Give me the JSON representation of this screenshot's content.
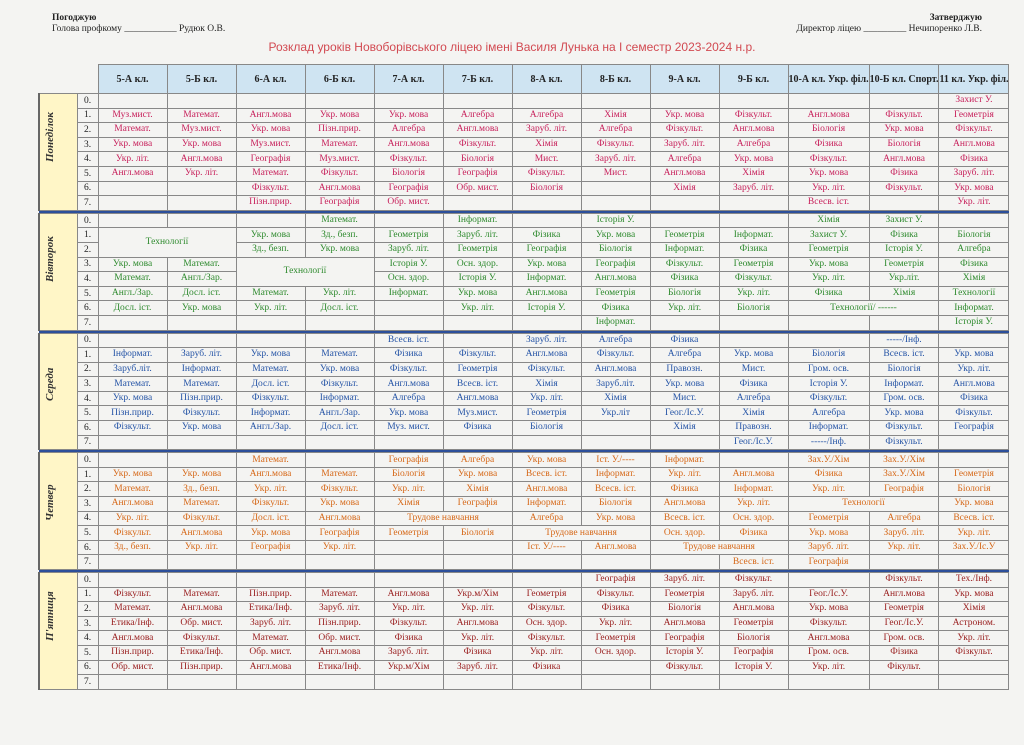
{
  "header": {
    "left_title": "Погоджую",
    "left_role": "Голова профкому",
    "left_line": "___________",
    "left_name": "Рудюк О.В.",
    "right_title": "Затверджую",
    "right_role": "Директор ліцею",
    "right_line": "_________",
    "right_name": "Нечипоренко Л.В."
  },
  "title": "Розклад уроків Новоборівського ліцею імені Василя Лунька на І семестр 2023-2024 н.р.",
  "classes": [
    "5-А кл.",
    "5-Б кл.",
    "6-А кл.",
    "6-Б кл.",
    "7-А кл.",
    "7-Б кл.",
    "8-А кл.",
    "8-Б кл.",
    "9-А кл.",
    "9-Б кл.",
    "10-А кл. Укр. філ.",
    "10-Б кл. Спорт.",
    "11 кл. Укр. філ."
  ],
  "periods": [
    "0.",
    "1.",
    "2.",
    "3.",
    "4.",
    "5.",
    "6.",
    "7."
  ],
  "colors": {
    "monday": "#c71f5a",
    "tuesday": "#2e8a2e",
    "wednesday": "#2554a6",
    "thursday": "#d66818",
    "friday": "#9a2020"
  },
  "days": [
    {
      "name": "Понеділок",
      "rows": [
        [
          "",
          "",
          "",
          "",
          "",
          "",
          "",
          "",
          "",
          "",
          "",
          "",
          "Захист У."
        ],
        [
          "Муз.мист.",
          "Математ.",
          "Англ.мова",
          "Укр. мова",
          "Укр. мова",
          "Алгебра",
          "Алгебра",
          "Хімія",
          "Укр. мова",
          "Фізкульт.",
          "Англ.мова",
          "Фізкульт.",
          "Геометрія"
        ],
        [
          "Математ.",
          "Муз.мист.",
          "Укр. мова",
          "Пізн.прир.",
          "Алгебра",
          "Англ.мова",
          "Заруб. літ.",
          "Алгебра",
          "Фізкульт.",
          "Англ.мова",
          "Біологія",
          "Укр. мова",
          "Фізкульт."
        ],
        [
          "Укр. мова",
          "Укр. мова",
          "Муз.мист.",
          "Математ.",
          "Англ.мова",
          "Фізкульт.",
          "Хімія",
          "Фізкульт.",
          "Заруб. літ.",
          "Алгебра",
          "Фізика",
          "Біологія",
          "Англ.мова"
        ],
        [
          "Укр. літ.",
          "Англ.мова",
          "Географія",
          "Муз.мист.",
          "Фізкульт.",
          "Біологія",
          "Мист.",
          "Заруб. літ.",
          "Алгебра",
          "Укр. мова",
          "Фізкульт.",
          "Англ.мова",
          "Фізика"
        ],
        [
          "Англ.мова",
          "Укр. літ.",
          "Математ.",
          "Фізкульт.",
          "Біологія",
          "Географія",
          "Фізкульт.",
          "Мист.",
          "Англ.мова",
          "Хімія",
          "Укр. мова",
          "Фізика",
          "Заруб. літ."
        ],
        [
          "",
          "",
          "Фізкульт.",
          "Англ.мова",
          "Географія",
          "Обр. мист.",
          "Біологія",
          "",
          "Хімія",
          "Заруб. літ.",
          "Укр. літ.",
          "Фізкульт.",
          "Укр. мова"
        ],
        [
          "",
          "",
          "Пізн.прир.",
          "Географія",
          "Обр. мист.",
          "",
          "",
          "",
          "",
          "",
          "Всесв. іст.",
          "",
          "Укр. літ."
        ]
      ]
    },
    {
      "name": "Вівторок",
      "rows": [
        [
          "",
          "",
          "",
          "Математ.",
          "",
          "Інформат.",
          "",
          "Історія У.",
          "",
          "",
          "Хімія",
          "Захист У.",
          ""
        ],
        [
          "Технології",
          "Технології",
          "Укр. мова",
          "Зд., безп.",
          "Геометрія",
          "Заруб. літ.",
          "Фізика",
          "Укр. мова",
          "Геометрія",
          "Інформат.",
          "Захист У.",
          "Фізика",
          "Біологія"
        ],
        [
          "",
          "",
          "Зд., безп.",
          "Укр. мова",
          "Заруб. літ.",
          "Геометрія",
          "Географія",
          "Біологія",
          "Інформат.",
          "Фізика",
          "Геометрія",
          "Історія У.",
          "Алгебра"
        ],
        [
          "Укр. мова",
          "Математ.",
          "Технології",
          "Технології",
          "Історія У.",
          "Осн. здор.",
          "Укр. мова",
          "Географія",
          "Фізкульт.",
          "Геометрія",
          "Укр. мова",
          "Геометрія",
          "Фізика"
        ],
        [
          "Математ.",
          "Англ./Зар.",
          "",
          "",
          "Осн. здор.",
          "Історія У.",
          "Інформат.",
          "Англ.мова",
          "Фізика",
          "Фізкульт.",
          "Укр. літ.",
          "Укр.літ.",
          "Хімія"
        ],
        [
          "Англ./Зар.",
          "Досл. іст.",
          "Математ.",
          "Укр. літ.",
          "Інформат.",
          "Укр. мова",
          "Англ.мова",
          "Геометрія",
          "Біологія",
          "Укр. літ.",
          "Фізика",
          "Хімія",
          "Технології"
        ],
        [
          "Досл. іст.",
          "Укр. мова",
          "Укр. літ.",
          "Досл. іст.",
          "",
          "Укр. літ.",
          "Історія У.",
          "Фізика",
          "Укр. літ.",
          "Біологія",
          "Технології/ ------",
          "Технології/ ------",
          "Інформат."
        ],
        [
          "",
          "",
          "",
          "",
          "",
          "",
          "",
          "Інформат.",
          "",
          "",
          "",
          "",
          "Історія У."
        ]
      ]
    },
    {
      "name": "Середа",
      "rows": [
        [
          "",
          "",
          "",
          "",
          "Всесв. іст.",
          "",
          "Заруб. літ.",
          "Алгебра",
          "Фізика",
          "",
          "",
          "-----/Інф.",
          ""
        ],
        [
          "Інформат.",
          "Заруб. літ.",
          "Укр. мова",
          "Математ.",
          "Фізика",
          "Фізкульт.",
          "Англ.мова",
          "Фізкульт.",
          "Алгебра",
          "Укр. мова",
          "Біологія",
          "Всесв. іст.",
          "Укр. мова"
        ],
        [
          "Заруб.літ.",
          "Інформат.",
          "Математ.",
          "Укр. мова",
          "Фізкульт.",
          "Геометрія",
          "Фізкульт.",
          "Англ.мова",
          "Правозн.",
          "Мист.",
          "Гром. осв.",
          "Біологія",
          "Укр. літ."
        ],
        [
          "Математ.",
          "Математ.",
          "Досл. іст.",
          "Фізкульт.",
          "Англ.мова",
          "Всесв. іст.",
          "Хімія",
          "Заруб.літ.",
          "Укр. мова",
          "Фізика",
          "Історія У.",
          "Інформат.",
          "Англ.мова"
        ],
        [
          "Укр. мова",
          "Пізн.прир.",
          "Фізкульт.",
          "Інформат.",
          "Алгебра",
          "Англ.мова",
          "Укр. літ.",
          "Хімія",
          "Мист.",
          "Алгебра",
          "Фізкульт.",
          "Гром. осв.",
          "Фізика"
        ],
        [
          "Пізн.прир.",
          "Фізкульт.",
          "Інформат.",
          "Англ./Зар.",
          "Укр. мова",
          "Муз.мист.",
          "Геометрія",
          "Укр.літ",
          "Геог./Іс.У.",
          "Хімія",
          "Алгебра",
          "Укр. мова",
          "Фізкульт."
        ],
        [
          "Фізкульт.",
          "Укр. мова",
          "Англ./Зар.",
          "Досл. іст.",
          "Муз. мист.",
          "Фізика",
          "Біологія",
          "",
          "Хімія",
          "Правозн.",
          "Інформат.",
          "Фізкульт.",
          "Географія"
        ],
        [
          "",
          "",
          "",
          "",
          "",
          "",
          "",
          "",
          "",
          "Геог./Іс.У.",
          "-----/Інф.",
          "Фізкульт.",
          ""
        ]
      ]
    },
    {
      "name": "Четвер",
      "rows": [
        [
          "",
          "",
          "Математ.",
          "",
          "Географія",
          "Алгебра",
          "Укр. мова",
          "Іст. У./----",
          "Інформат.",
          "",
          "Зах.У./Хім",
          "Зах.У./Хім",
          ""
        ],
        [
          "Укр. мова",
          "Укр. мова",
          "Англ.мова",
          "Математ.",
          "Біологія",
          "Укр. мова",
          "Всесв. іст.",
          "Інформат.",
          "Укр. літ.",
          "Англ.мова",
          "Фізика",
          "Зах.У./Хім",
          "Геометрія"
        ],
        [
          "Математ.",
          "Зд., безп.",
          "Укр. літ.",
          "Фізкульт.",
          "Укр. літ.",
          "Хімія",
          "Англ.мова",
          "Всесв. іст.",
          "Фізика",
          "Інформат.",
          "Укр. літ.",
          "Географія",
          "Біологія"
        ],
        [
          "Англ.мова",
          "Математ.",
          "Фізкульт.",
          "Укр. мова",
          "Хімія",
          "Географія",
          "Інформат.",
          "Біологія",
          "Англ.мова",
          "Укр. літ.",
          "Технології",
          "Технології",
          "Укр. мова"
        ],
        [
          "Укр. літ.",
          "Фізкульт.",
          "Досл. іст.",
          "Англ.мова",
          "Трудове навчання",
          "Трудове навчання",
          "Алгебра",
          "Укр. мова",
          "Всесв. іст.",
          "Осн. здор.",
          "Геометрія",
          "Алгебра",
          "Всесв. іст."
        ],
        [
          "Фізкульт.",
          "Англ.мова",
          "Укр. мова",
          "Географія",
          "Геометрія",
          "Біологія",
          "Трудове навчання",
          "Трудове навчання",
          "Осн. здор.",
          "Фізика",
          "Укр. мова",
          "Заруб. літ.",
          "Укр. літ."
        ],
        [
          "Зд., безп.",
          "Укр. літ.",
          "Географія",
          "Укр. літ.",
          "",
          "",
          "Іст. У./----",
          "Англ.мова",
          "Трудове навчання",
          "Трудове навчання",
          "Заруб. літ.",
          "Укр. літ.",
          "Зах.У./Іс.У"
        ],
        [
          "",
          "",
          "",
          "",
          "",
          "",
          "",
          "",
          "",
          "Всесв. іст.",
          "Географія",
          "",
          ""
        ]
      ]
    },
    {
      "name": "П'ятниця",
      "rows": [
        [
          "",
          "",
          "",
          "",
          "",
          "",
          "",
          "Географія",
          "Заруб. літ.",
          "Фізкульт.",
          "",
          "Фізкульт.",
          "Тех./Інф."
        ],
        [
          "Фізкульт.",
          "Математ.",
          "Пізн.прир.",
          "Математ.",
          "Англ.мова",
          "Укр.м/Хім",
          "Геометрія",
          "Фізкульт.",
          "Геометрія",
          "Заруб. літ.",
          "Геог./Іс.У.",
          "Англ.мова",
          "Укр. мова"
        ],
        [
          "Математ.",
          "Англ.мова",
          "Етика/Інф.",
          "Заруб. літ.",
          "Укр. літ.",
          "Укр. літ.",
          "Фізкульт.",
          "Фізика",
          "Біологія",
          "Англ.мова",
          "Укр. мова",
          "Геометрія",
          "Хімія"
        ],
        [
          "Етика/Інф.",
          "Обр. мист.",
          "Заруб. літ.",
          "Пізн.прир.",
          "Фізкульт.",
          "Англ.мова",
          "Осн. здор.",
          "Укр. літ.",
          "Англ.мова",
          "Геометрія",
          "Фізкульт.",
          "Геог./Іс.У.",
          "Астроном."
        ],
        [
          "Англ.мова",
          "Фізкульт.",
          "Математ.",
          "Обр. мист.",
          "Фізика",
          "Укр. літ.",
          "Фізкульт.",
          "Геометрія",
          "Географія",
          "Біологія",
          "Англ.мова",
          "Гром. осв.",
          "Укр. літ."
        ],
        [
          "Пізн.прир.",
          "Етика/Інф.",
          "Обр. мист.",
          "Англ.мова",
          "Заруб. літ.",
          "Фізика",
          "Укр. літ.",
          "Осн. здор.",
          "Історія У.",
          "Географія",
          "Гром. осв.",
          "Фізика",
          "Фізкульт."
        ],
        [
          "Обр. мист.",
          "Пізн.прир.",
          "Англ.мова",
          "Етика/Інф.",
          "Укр.м/Хім",
          "Заруб. літ.",
          "Фізика",
          "",
          "Фізкульт.",
          "Історія У.",
          "Укр. літ.",
          "Фікульт.",
          ""
        ],
        [
          "",
          "",
          "",
          "",
          "",
          "",
          "",
          "",
          "",
          "",
          "",
          "",
          ""
        ]
      ]
    }
  ]
}
